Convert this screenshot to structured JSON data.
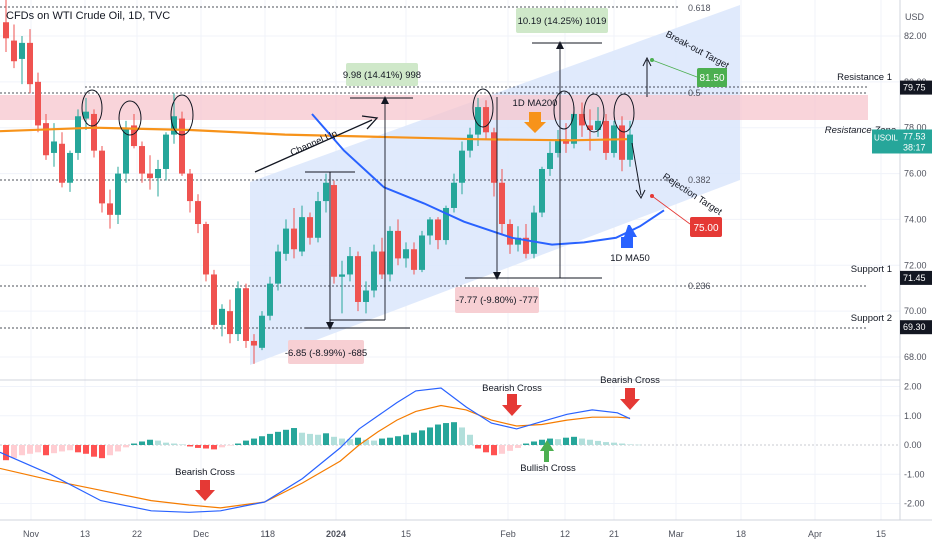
{
  "header": {
    "title": "CFDs on WTI Crude Oil, 1D, TVC",
    "currency": "USD"
  },
  "colors": {
    "up": "#26a69a",
    "down": "#ef5350",
    "ma50": "#2962ff",
    "ma200": "#f7931a",
    "channel": "#dbe6fb",
    "resistance_zone": "#f7c6cd",
    "green_label": "#4caf50",
    "red_label": "#e53935",
    "macd": "#2962ff",
    "signal": "#f57c00"
  },
  "price_axis": {
    "ticks": [
      "82.00",
      "80.00",
      "78.00",
      "76.00",
      "74.00",
      "72.00",
      "70.00",
      "68.00"
    ],
    "tags": [
      {
        "text": "79.75",
        "style": "dark",
        "value": 79.75
      },
      {
        "text": "77.53",
        "style": "teal",
        "value": 77.53,
        "sub": "38:17",
        "name": "USOIL"
      },
      {
        "text": "71.45",
        "style": "dark",
        "value": 71.45
      },
      {
        "text": "69.30",
        "style": "dark",
        "value": 69.3
      }
    ]
  },
  "macd_axis": {
    "ticks": [
      "2.00",
      "1.00",
      "0.00",
      "-1.00",
      "-2.00"
    ]
  },
  "date_axis": [
    "Nov",
    "13",
    "22",
    "Dec",
    "11",
    "18",
    "2024",
    "15",
    "Feb",
    "12",
    "21",
    "Mar",
    "18",
    "Apr",
    "15"
  ],
  "annotations": {
    "fib": [
      "0.618",
      "0.5",
      "0.382",
      "0.236"
    ],
    "resistance1": "Resistance 1",
    "resistance_zone": "Resistance Zone",
    "support1": "Support 1",
    "support2": "Support 2",
    "channel_up": "Channel Up",
    "ma200": "1D MA200",
    "ma50": "1D MA50",
    "breakout": "Break-out Target",
    "rejection": "Rejection Target",
    "breakout_value": "81.50",
    "rejection_value": "75.00",
    "measure_top1": "10.19 (14.25%) 1019",
    "measure_top2": "9.98 (14.41%) 998",
    "measure_bot1": "-6.85 (-8.99%) -685",
    "measure_bot2": "-7.77 (-9.80%) -777",
    "bearish_cross_1": "Bearish Cross",
    "bearish_cross_2": "Bearish Cross",
    "bearish_cross_3": "Bearish Cross",
    "bullish_cross": "Bullish Cross"
  },
  "chart_data": [
    {
      "type": "candlestick",
      "title": "CFDs on WTI Crude Oil, 1D, TVC",
      "ylim": [
        67.5,
        83.0
      ],
      "candles": [
        [
          82.6,
          83.6,
          81.3,
          81.9
        ],
        [
          81.8,
          82.5,
          80.6,
          80.9
        ],
        [
          81.0,
          82.0,
          79.9,
          81.7
        ],
        [
          81.7,
          82.3,
          79.5,
          79.9
        ],
        [
          80.0,
          80.4,
          77.8,
          78.1
        ],
        [
          78.2,
          78.6,
          76.6,
          76.8
        ],
        [
          76.9,
          78.2,
          76.3,
          77.4
        ],
        [
          77.3,
          77.8,
          75.4,
          75.6
        ],
        [
          75.6,
          77.0,
          75.2,
          76.9
        ],
        [
          76.9,
          78.8,
          76.6,
          78.5
        ],
        [
          78.4,
          79.3,
          77.9,
          78.7
        ],
        [
          78.6,
          78.8,
          76.7,
          77.0
        ],
        [
          77.0,
          77.2,
          74.3,
          74.7
        ],
        [
          74.7,
          75.3,
          73.6,
          74.2
        ],
        [
          74.2,
          76.3,
          73.8,
          76.0
        ],
        [
          76.0,
          78.3,
          75.6,
          78.0
        ],
        [
          78.1,
          78.6,
          77.1,
          77.2
        ],
        [
          77.2,
          77.4,
          75.6,
          76.0
        ],
        [
          76.0,
          76.8,
          75.3,
          75.8
        ],
        [
          75.8,
          76.6,
          75.0,
          76.2
        ],
        [
          76.2,
          77.8,
          75.7,
          77.7
        ],
        [
          77.7,
          79.5,
          77.3,
          78.5
        ],
        [
          78.4,
          78.7,
          75.9,
          76.0
        ],
        [
          76.0,
          76.2,
          74.3,
          74.8
        ],
        [
          74.8,
          75.1,
          73.4,
          73.8
        ],
        [
          73.8,
          73.9,
          71.3,
          71.6
        ],
        [
          71.6,
          71.8,
          69.2,
          69.4
        ],
        [
          69.4,
          70.3,
          68.9,
          70.1
        ],
        [
          70.0,
          70.5,
          68.6,
          69.0
        ],
        [
          69.0,
          71.3,
          68.7,
          71.0
        ],
        [
          71.0,
          71.2,
          68.4,
          68.7
        ],
        [
          68.7,
          69.0,
          67.7,
          68.5
        ],
        [
          68.4,
          70.0,
          68.3,
          69.8
        ],
        [
          69.8,
          71.5,
          69.6,
          71.2
        ],
        [
          71.2,
          72.9,
          70.9,
          72.6
        ],
        [
          72.5,
          74.0,
          72.2,
          73.6
        ],
        [
          73.6,
          74.5,
          72.3,
          72.7
        ],
        [
          72.6,
          74.6,
          72.4,
          74.1
        ],
        [
          74.1,
          74.3,
          72.9,
          73.2
        ],
        [
          73.2,
          75.2,
          73.0,
          74.8
        ],
        [
          74.8,
          76.0,
          74.3,
          75.6
        ],
        [
          75.5,
          75.7,
          71.2,
          71.5
        ],
        [
          71.5,
          72.2,
          69.9,
          71.6
        ],
        [
          71.6,
          72.8,
          71.3,
          72.4
        ],
        [
          72.4,
          72.6,
          70.0,
          70.4
        ],
        [
          70.4,
          71.3,
          69.9,
          70.9
        ],
        [
          70.9,
          72.9,
          70.6,
          72.6
        ],
        [
          72.6,
          73.2,
          71.4,
          71.6
        ],
        [
          71.6,
          73.7,
          71.3,
          73.5
        ],
        [
          73.5,
          74.0,
          72.0,
          72.3
        ],
        [
          72.3,
          73.0,
          71.9,
          72.7
        ],
        [
          72.7,
          73.0,
          71.6,
          71.8
        ],
        [
          71.8,
          73.5,
          71.7,
          73.3
        ],
        [
          73.3,
          74.1,
          72.9,
          74.0
        ],
        [
          74.0,
          74.1,
          72.7,
          73.1
        ],
        [
          73.1,
          74.6,
          72.9,
          74.5
        ],
        [
          74.5,
          76.0,
          74.3,
          75.6
        ],
        [
          75.6,
          77.4,
          75.1,
          77.0
        ],
        [
          77.0,
          78.0,
          76.7,
          77.7
        ],
        [
          77.7,
          79.3,
          77.2,
          78.9
        ],
        [
          78.9,
          79.2,
          77.5,
          77.8
        ],
        [
          77.8,
          78.0,
          75.0,
          75.6
        ],
        [
          75.6,
          76.2,
          73.3,
          73.8
        ],
        [
          73.8,
          74.0,
          72.5,
          72.9
        ],
        [
          72.9,
          73.7,
          72.6,
          73.2
        ],
        [
          73.2,
          73.8,
          72.3,
          72.5
        ],
        [
          72.5,
          74.6,
          72.3,
          74.3
        ],
        [
          74.3,
          76.3,
          74.1,
          76.2
        ],
        [
          76.2,
          77.4,
          75.9,
          76.9
        ],
        [
          76.9,
          77.9,
          76.7,
          77.5
        ],
        [
          77.5,
          78.2,
          76.9,
          77.3
        ],
        [
          77.3,
          78.9,
          77.1,
          78.6
        ],
        [
          78.6,
          79.1,
          77.6,
          78.1
        ],
        [
          78.1,
          78.8,
          77.0,
          77.9
        ],
        [
          77.9,
          78.9,
          77.6,
          78.3
        ],
        [
          78.3,
          78.6,
          76.6,
          76.9
        ],
        [
          76.9,
          78.3,
          76.7,
          78.1
        ],
        [
          78.1,
          78.5,
          76.1,
          76.6
        ],
        [
          76.6,
          78.3,
          76.3,
          77.7
        ]
      ],
      "ma50": [
        [
          22,
          78.6
        ],
        [
          26,
          77.0
        ],
        [
          31,
          75.4
        ],
        [
          36,
          74.7
        ],
        [
          41,
          73.9
        ],
        [
          47,
          73.2
        ],
        [
          52,
          72.9
        ],
        [
          56,
          73.0
        ],
        [
          60,
          73.2
        ],
        [
          63,
          73.7
        ],
        [
          66,
          74.4
        ]
      ],
      "ma200": [
        [
          0,
          77.85
        ],
        [
          10,
          78.0
        ],
        [
          20,
          77.9
        ],
        [
          30,
          77.7
        ],
        [
          40,
          77.6
        ],
        [
          50,
          77.5
        ],
        [
          60,
          77.45
        ],
        [
          66,
          77.5
        ]
      ]
    },
    {
      "type": "macd",
      "ylim": [
        -2.4,
        2.2
      ],
      "histogram": [
        -0.52,
        -0.45,
        -0.35,
        -0.3,
        -0.25,
        -0.35,
        -0.28,
        -0.22,
        -0.18,
        -0.25,
        -0.3,
        -0.4,
        -0.45,
        -0.35,
        -0.22,
        -0.08,
        0.05,
        0.12,
        0.18,
        0.15,
        0.08,
        0.05,
        0.02,
        -0.05,
        -0.1,
        -0.12,
        -0.15,
        -0.08,
        -0.02,
        0.05,
        0.15,
        0.22,
        0.3,
        0.38,
        0.45,
        0.52,
        0.58,
        0.42,
        0.38,
        0.35,
        0.4,
        0.28,
        0.22,
        0.2,
        0.25,
        0.18,
        0.15,
        0.22,
        0.25,
        0.3,
        0.35,
        0.42,
        0.5,
        0.6,
        0.7,
        0.75,
        0.78,
        0.6,
        0.35,
        -0.12,
        -0.25,
        -0.35,
        -0.3,
        -0.2,
        -0.1,
        0.05,
        0.12,
        0.18,
        0.22,
        0.2,
        0.25,
        0.28,
        0.22,
        0.18,
        0.14,
        0.1,
        0.08,
        0.05,
        0.02,
        0.01
      ],
      "macd": [
        [
          0,
          -0.25
        ],
        [
          8,
          -1.0
        ],
        [
          16,
          -1.9
        ],
        [
          24,
          -2.25
        ],
        [
          30,
          -2.3
        ],
        [
          35,
          -2.25
        ],
        [
          42,
          -1.95
        ],
        [
          48,
          -1.15
        ],
        [
          54,
          -0.1
        ],
        [
          57,
          0.55
        ],
        [
          60,
          1.0
        ],
        [
          63,
          1.45
        ],
        [
          66,
          1.85
        ],
        [
          70,
          1.95
        ],
        [
          74,
          1.3
        ],
        [
          78,
          0.75
        ],
        [
          82,
          0.55
        ],
        [
          86,
          0.8
        ],
        [
          90,
          1.05
        ],
        [
          94,
          1.2
        ],
        [
          98,
          1.1
        ],
        [
          100,
          0.9
        ]
      ],
      "signal": [
        [
          0,
          -0.8
        ],
        [
          8,
          -1.2
        ],
        [
          16,
          -1.55
        ],
        [
          24,
          -1.9
        ],
        [
          30,
          -2.05
        ],
        [
          35,
          -2.15
        ],
        [
          42,
          -1.95
        ],
        [
          48,
          -1.3
        ],
        [
          54,
          -0.55
        ],
        [
          57,
          0.0
        ],
        [
          60,
          0.45
        ],
        [
          63,
          0.85
        ],
        [
          66,
          1.15
        ],
        [
          70,
          1.35
        ],
        [
          74,
          1.2
        ],
        [
          78,
          0.85
        ],
        [
          82,
          0.65
        ],
        [
          86,
          0.7
        ],
        [
          90,
          0.85
        ],
        [
          94,
          0.95
        ],
        [
          98,
          0.95
        ],
        [
          100,
          0.92
        ]
      ]
    }
  ]
}
